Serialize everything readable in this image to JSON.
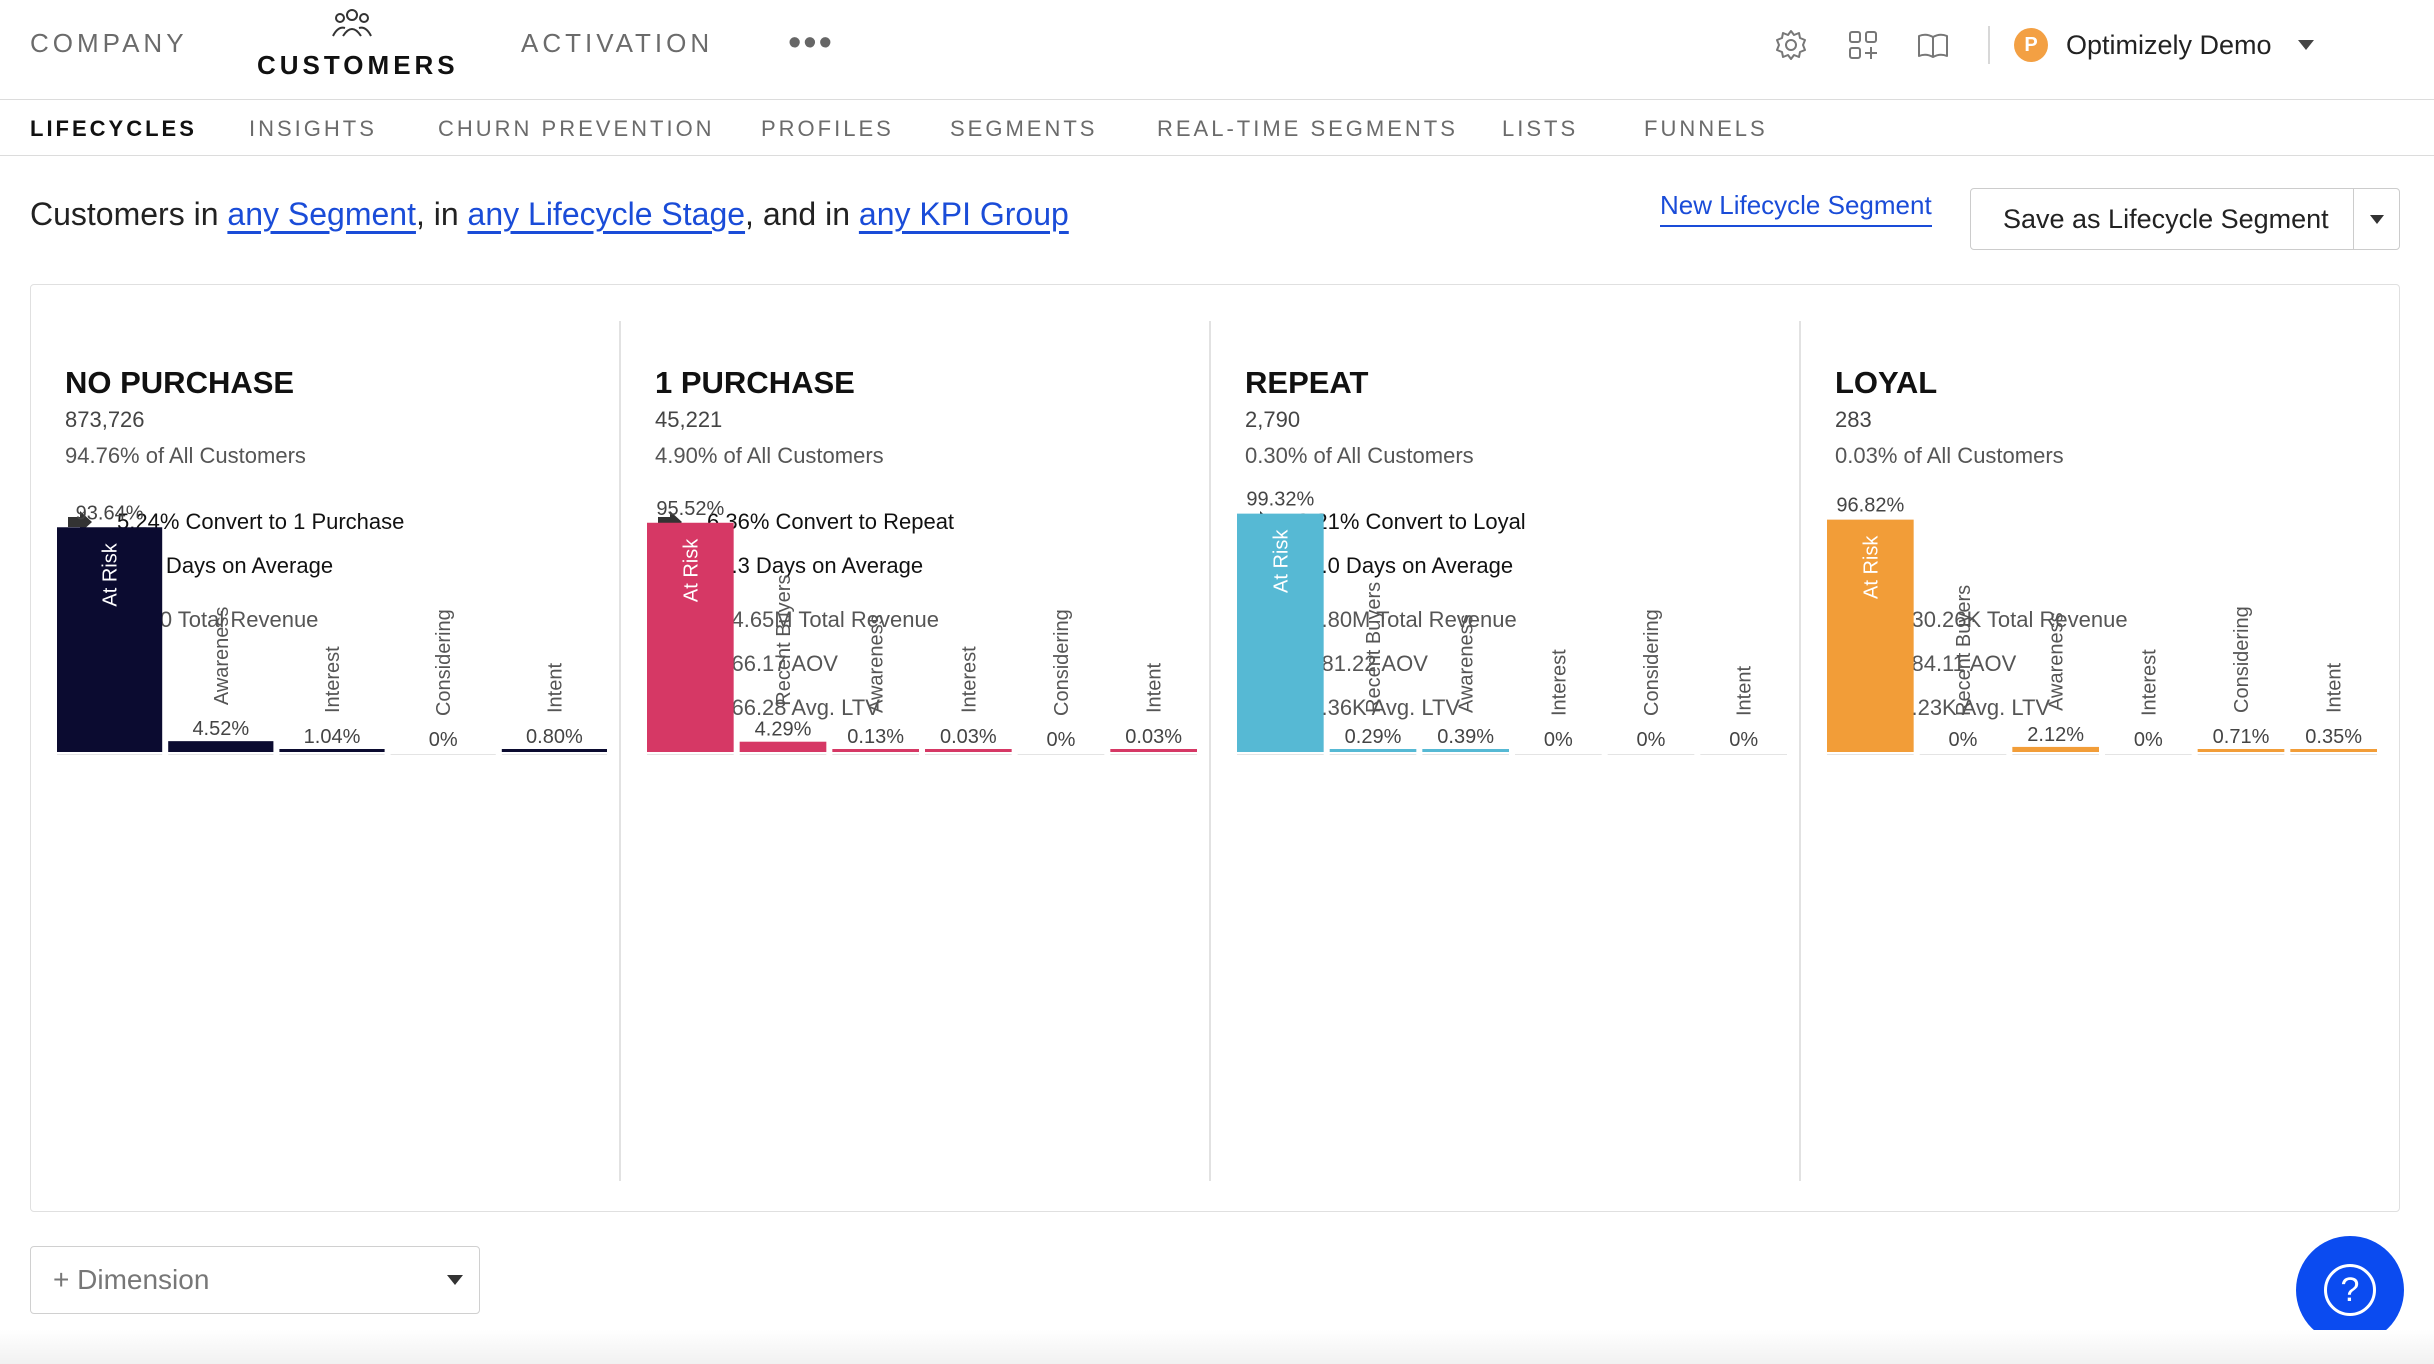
{
  "topnav": {
    "tabs": [
      {
        "label": "COMPANY"
      },
      {
        "label": "CUSTOMERS"
      },
      {
        "label": "ACTIVATION"
      }
    ],
    "more_label": "•••",
    "account": {
      "initial": "P",
      "name": "Optimizely Demo"
    }
  },
  "subnav": {
    "tabs": [
      {
        "label": "LIFECYCLES"
      },
      {
        "label": "INSIGHTS"
      },
      {
        "label": "CHURN PREVENTION"
      },
      {
        "label": "PROFILES"
      },
      {
        "label": "SEGMENTS"
      },
      {
        "label": "REAL-TIME SEGMENTS"
      },
      {
        "label": "LISTS"
      },
      {
        "label": "FUNNELS"
      }
    ]
  },
  "filter": {
    "prefix": "Customers in",
    "segment": "any Segment",
    "sep1": ", in",
    "lifecycle": "any Lifecycle Stage",
    "sep2": ", and in",
    "kpi": "any KPI Group"
  },
  "actions": {
    "new_segment": "New Lifecycle Segment",
    "save_segment": "Save as Lifecycle Segment"
  },
  "stages": [
    {
      "title": "NO PURCHASE",
      "count": "873,726",
      "pct": "94.76% of All Customers",
      "convert": "5.24% Convert to 1 Purchase",
      "days": "20.4 Days on Average",
      "revenue": "$0.00 Total Revenue",
      "aov": null,
      "ltv": null
    },
    {
      "title": "1 PURCHASE",
      "count": "45,221",
      "pct": "4.90% of All Customers",
      "convert": "6.36% Convert to Repeat",
      "days": "14.3 Days on Average",
      "revenue": "$34.65M Total Revenue",
      "aov": "$766.17 AOV",
      "ltv": "$766.28 Avg. LTV"
    },
    {
      "title": "REPEAT",
      "count": "2,790",
      "pct": "0.30% of All Customers",
      "convert": "9.21% Convert to Loyal",
      "days": "19.0 Days on Average",
      "revenue": "$3.80M Total Revenue",
      "aov": "$681.22 AOV",
      "ltv": "$1.36K Avg. LTV"
    },
    {
      "title": "LOYAL",
      "count": "283",
      "pct": "0.03% of All Customers",
      "convert": null,
      "days": null,
      "revenue": "$630.26K Total Revenue",
      "aov": "$584.11 AOV",
      "ltv": "$2.23K Avg. LTV"
    }
  ],
  "chart_data": [
    {
      "type": "bar",
      "color": "#0b0b30",
      "categories": [
        "At Risk",
        "Awareness",
        "Interest",
        "Considering",
        "Intent"
      ],
      "values": [
        93.64,
        4.52,
        1.04,
        0,
        0.8
      ],
      "value_labels": [
        "93.64%",
        "4.52%",
        "1.04%",
        "0%",
        "0.80%"
      ]
    },
    {
      "type": "bar",
      "color": "#d63865",
      "categories": [
        "At Risk",
        "Recent Buyers",
        "Awareness",
        "Interest",
        "Considering",
        "Intent"
      ],
      "values": [
        95.52,
        4.29,
        0.13,
        0.03,
        0,
        0.03
      ],
      "value_labels": [
        "95.52%",
        "4.29%",
        "0.13%",
        "0.03%",
        "0%",
        "0.03%"
      ]
    },
    {
      "type": "bar",
      "color": "#56b9d4",
      "categories": [
        "At Risk",
        "Recent Buyers",
        "Awareness",
        "Interest",
        "Considering",
        "Intent"
      ],
      "values": [
        99.32,
        0.29,
        0.39,
        0,
        0,
        0
      ],
      "value_labels": [
        "99.32%",
        "0.29%",
        "0.39%",
        "0%",
        "0%",
        "0%"
      ]
    },
    {
      "type": "bar",
      "color": "#f29d38",
      "categories": [
        "At Risk",
        "Recent Buyers",
        "Awareness",
        "Interest",
        "Considering",
        "Intent"
      ],
      "values": [
        96.82,
        0,
        2.12,
        0,
        0.71,
        0.35
      ],
      "value_labels": [
        "96.82%",
        "0%",
        "2.12%",
        "0%",
        "0.71%",
        "0.35%"
      ]
    }
  ],
  "dimension": {
    "label": "+ Dimension"
  },
  "help": {
    "label": "?"
  },
  "icons": {
    "customers_tab": "people-group-icon",
    "settings": "gear-icon",
    "apps": "apps-grid-icon",
    "docs": "book-icon",
    "convert": "arrow-right-icon",
    "days": "calendar-icon",
    "revenue": "dollar-icon",
    "aov": "cart-icon",
    "ltv": "user-icon"
  }
}
